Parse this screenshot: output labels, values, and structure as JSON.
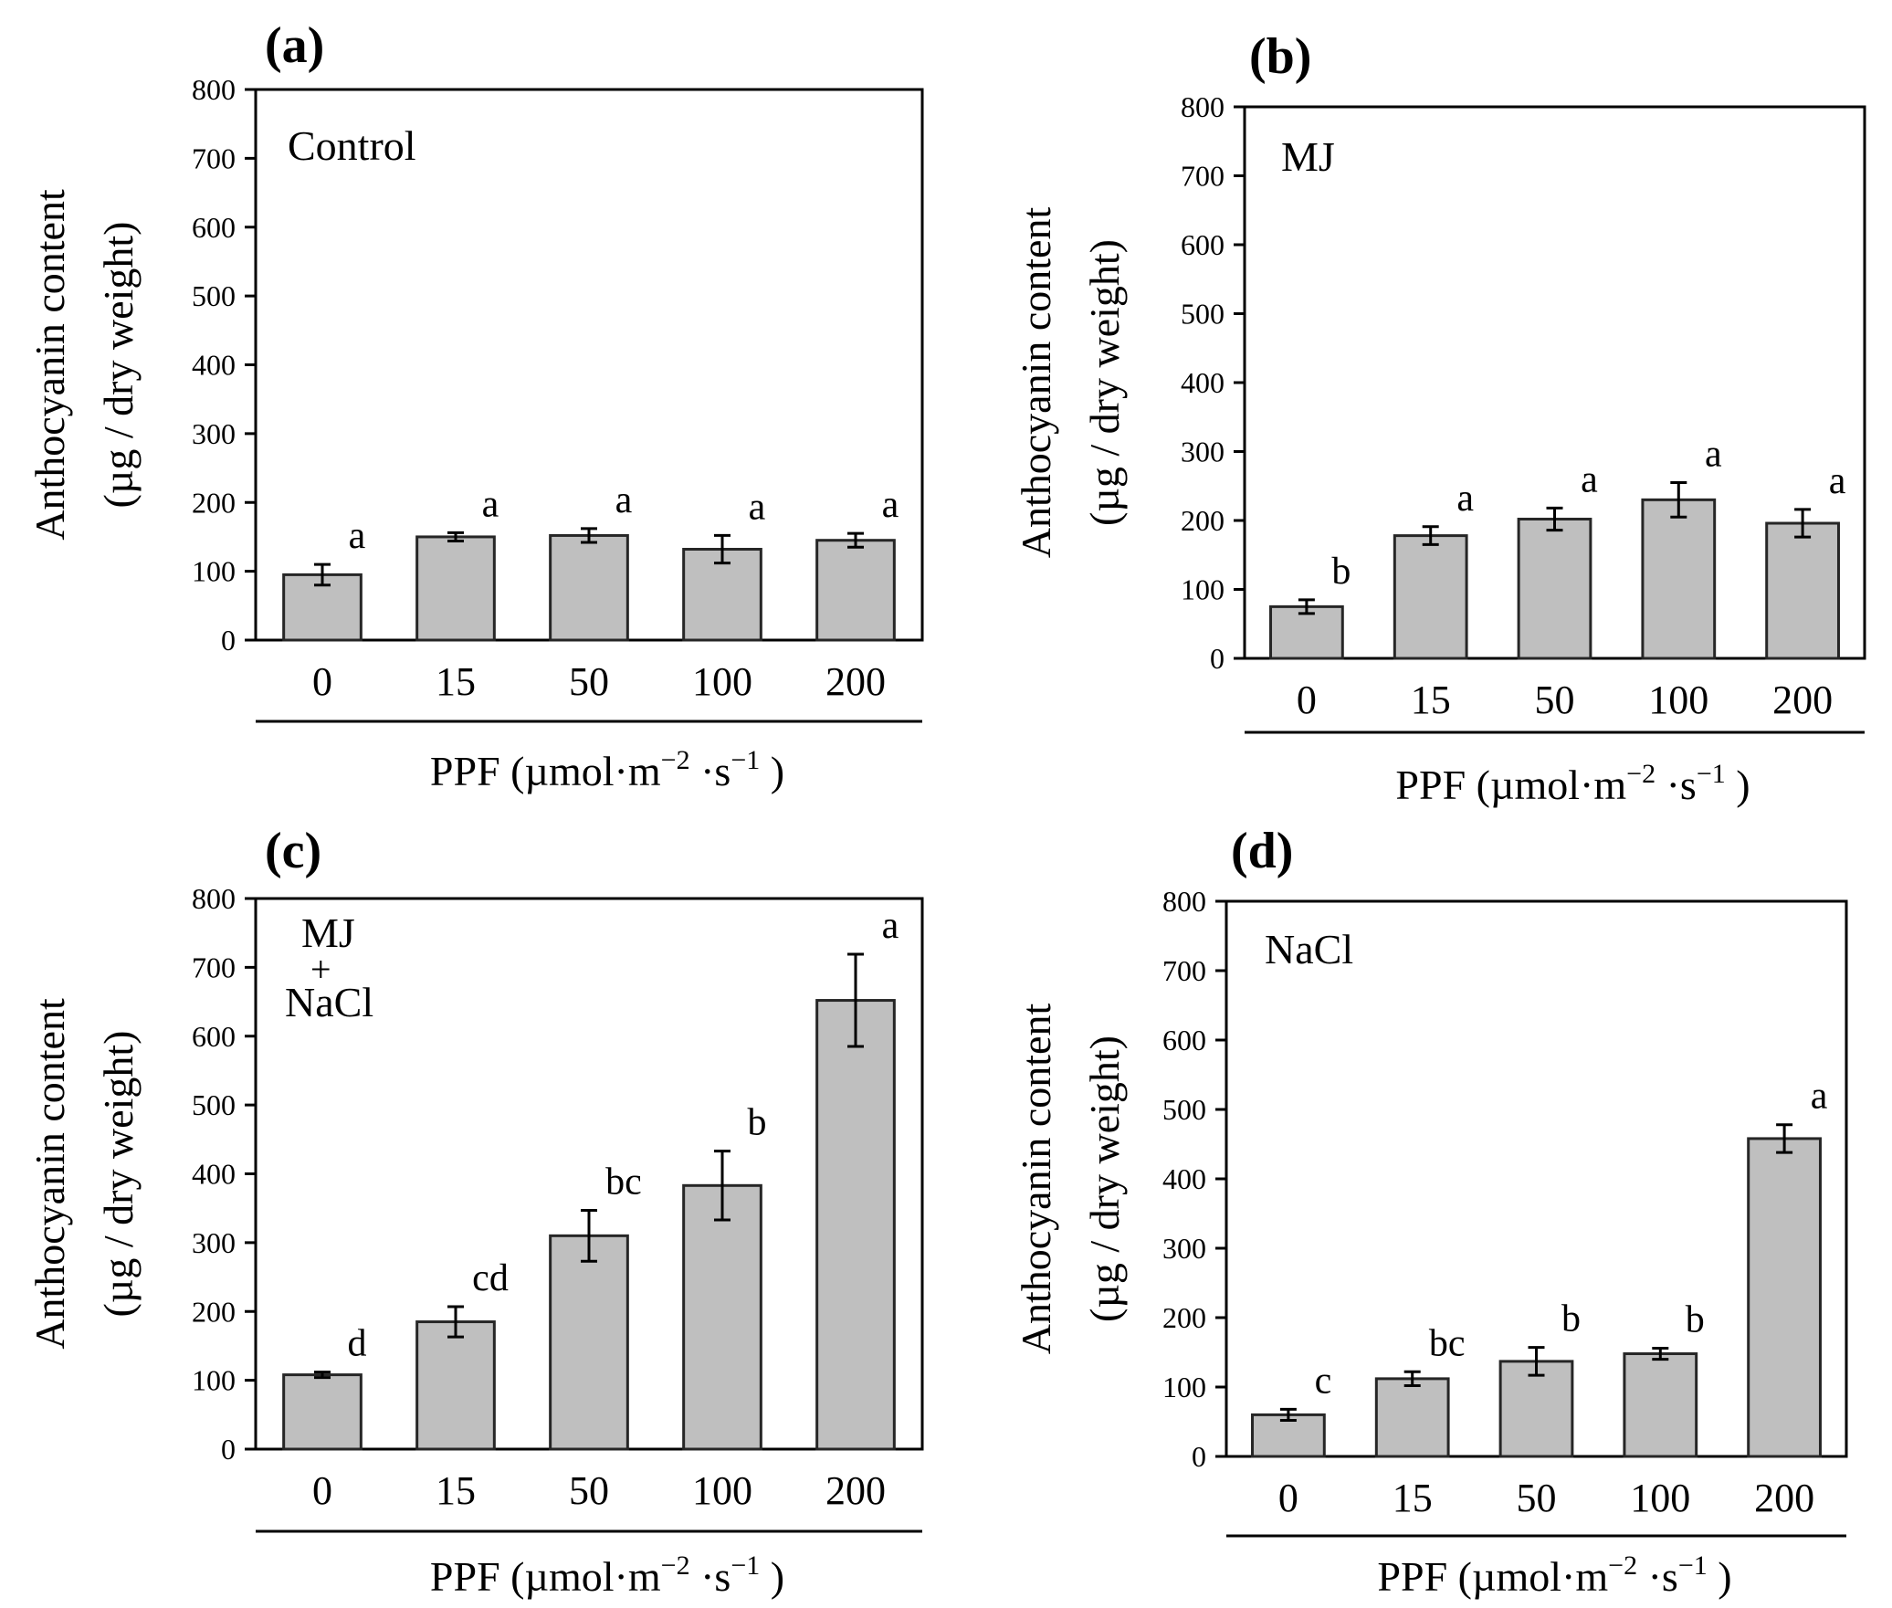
{
  "chart_data": [
    {
      "type": "bar",
      "panel_label": "(a)",
      "treatment": [
        "Control"
      ],
      "categories": [
        "0",
        "15",
        "50",
        "100",
        "200"
      ],
      "values": [
        95,
        150,
        152,
        132,
        145
      ],
      "errors": [
        15,
        6,
        10,
        20,
        10
      ],
      "letters": [
        "a",
        "a",
        "a",
        "a",
        "a"
      ],
      "ylabel_line1": "Anthocyanin content",
      "ylabel_line2": "(µg / dry weight)",
      "xlabel_main": "PPF (µmol·m",
      "xlabel_exp1": "−2",
      "xlabel_mid": " ·s",
      "xlabel_exp2": "−1",
      "xlabel_end": " )",
      "yticks": [
        "0",
        "100",
        "200",
        "300",
        "400",
        "500",
        "600",
        "700",
        "800"
      ],
      "ylim": [
        0,
        800
      ]
    },
    {
      "type": "bar",
      "panel_label": "(b)",
      "treatment": [
        "MJ"
      ],
      "categories": [
        "0",
        "15",
        "50",
        "100",
        "200"
      ],
      "values": [
        75,
        178,
        202,
        230,
        196
      ],
      "errors": [
        10,
        13,
        16,
        25,
        20
      ],
      "letters": [
        "b",
        "a",
        "a",
        "a",
        "a"
      ],
      "ylabel_line1": "Anthocyanin content",
      "ylabel_line2": "(µg / dry weight)",
      "xlabel_main": "PPF (µmol·m",
      "xlabel_exp1": "−2",
      "xlabel_mid": " ·s",
      "xlabel_exp2": "−1",
      "xlabel_end": " )",
      "yticks": [
        "0",
        "100",
        "200",
        "300",
        "400",
        "500",
        "600",
        "700",
        "800"
      ],
      "ylim": [
        0,
        800
      ]
    },
    {
      "type": "bar",
      "panel_label": "(c)",
      "treatment": [
        "MJ",
        "+",
        "NaCl"
      ],
      "categories": [
        "0",
        "15",
        "50",
        "100",
        "200"
      ],
      "values": [
        108,
        185,
        310,
        383,
        652
      ],
      "errors": [
        4,
        22,
        37,
        50,
        67
      ],
      "letters": [
        "d",
        "cd",
        "bc",
        "b",
        "a"
      ],
      "ylabel_line1": "Anthocyanin content",
      "ylabel_line2": "(µg / dry weight)",
      "xlabel_main": "PPF (µmol·m",
      "xlabel_exp1": "−2",
      "xlabel_mid": " ·s",
      "xlabel_exp2": "−1",
      "xlabel_end": " )",
      "yticks": [
        "0",
        "100",
        "200",
        "300",
        "400",
        "500",
        "600",
        "700",
        "800"
      ],
      "ylim": [
        0,
        800
      ]
    },
    {
      "type": "bar",
      "panel_label": "(d)",
      "treatment": [
        "NaCl"
      ],
      "categories": [
        "0",
        "15",
        "50",
        "100",
        "200"
      ],
      "values": [
        60,
        112,
        137,
        148,
        458
      ],
      "errors": [
        8,
        10,
        20,
        8,
        20
      ],
      "letters": [
        "c",
        "bc",
        "b",
        "b",
        "a"
      ],
      "ylabel_line1": "Anthocyanin content",
      "ylabel_line2": "(µg / dry weight)",
      "xlabel_main": "PPF (µmol·m",
      "xlabel_exp1": "−2",
      "xlabel_mid": " ·s",
      "xlabel_exp2": "−1",
      "xlabel_end": " )",
      "yticks": [
        "0",
        "100",
        "200",
        "300",
        "400",
        "500",
        "600",
        "700",
        "800"
      ],
      "ylim": [
        0,
        800
      ]
    }
  ],
  "colors": {
    "bar_fill": "#bfbfbf",
    "bar_stroke": "#262626",
    "axis": "#000000"
  }
}
